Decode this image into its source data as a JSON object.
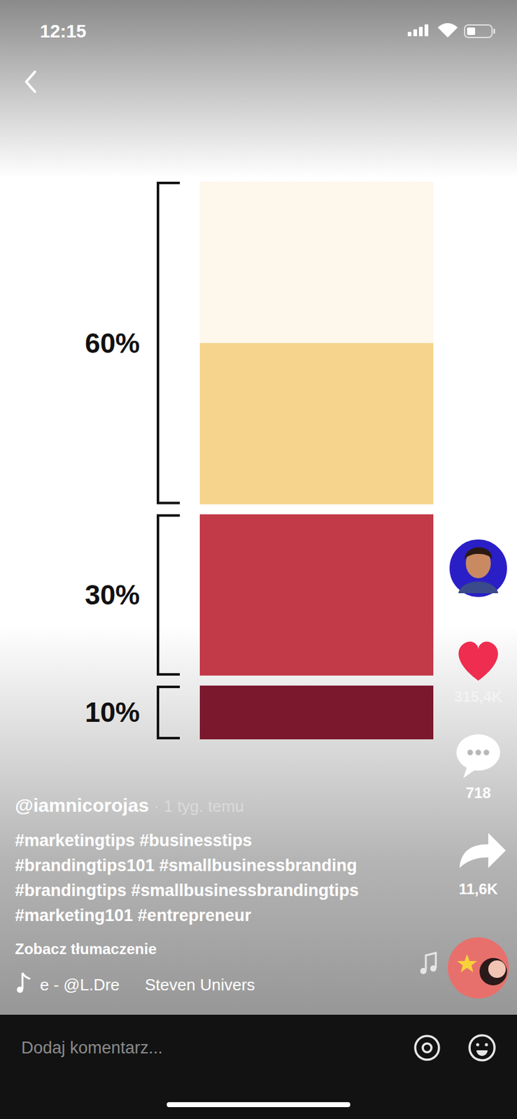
{
  "chart_data": {
    "type": "stacked_bar",
    "stacked": true,
    "ylim": [
      0,
      100
    ],
    "groups": [
      {
        "value": 60,
        "label": "60%",
        "segments": [
          {
            "value": 30,
            "color": "#fdf7ec"
          },
          {
            "value": 30,
            "color": "#f6d48d"
          }
        ]
      },
      {
        "value": 30,
        "label": "30%",
        "segments": [
          {
            "value": 30,
            "color": "#c23a48"
          }
        ]
      },
      {
        "value": 10,
        "label": "10%",
        "segments": [
          {
            "value": 10,
            "color": "#7b182d"
          }
        ]
      }
    ]
  },
  "screen": {
    "status_time": "12:15",
    "username": "@iamnicorojas",
    "posted": "· 1 tyg. temu",
    "hashtags": [
      "#marketingtips #businesstips",
      "#brandingtips101 #smallbusinessbranding",
      "#brandingtips #smallbusinessbrandingtips",
      "#marketing101 #entrepreneur"
    ],
    "translate": "Zobacz tłumaczenie",
    "sound": [
      "e - @L.Dre",
      "Steven Univers"
    ],
    "likes": "315,4K",
    "comments": "718",
    "shares": "11,6K",
    "comment_placeholder": "Dodaj komentarz..."
  }
}
